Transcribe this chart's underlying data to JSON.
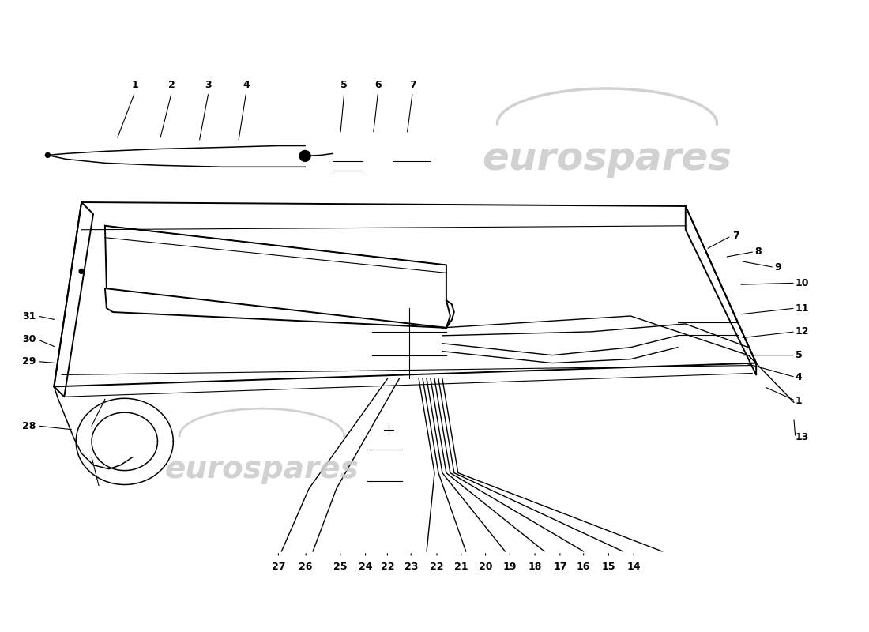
{
  "bg_color": "#ffffff",
  "watermark_color": "#cccccc",
  "line_color": "#000000",
  "fig_width": 11.0,
  "fig_height": 8.0,
  "lw_main": 1.4,
  "lw_thin": 0.8,
  "lw_thick": 2.0,
  "label_fs": 9,
  "watermark_fs_large": 36,
  "watermark_fs_small": 28
}
